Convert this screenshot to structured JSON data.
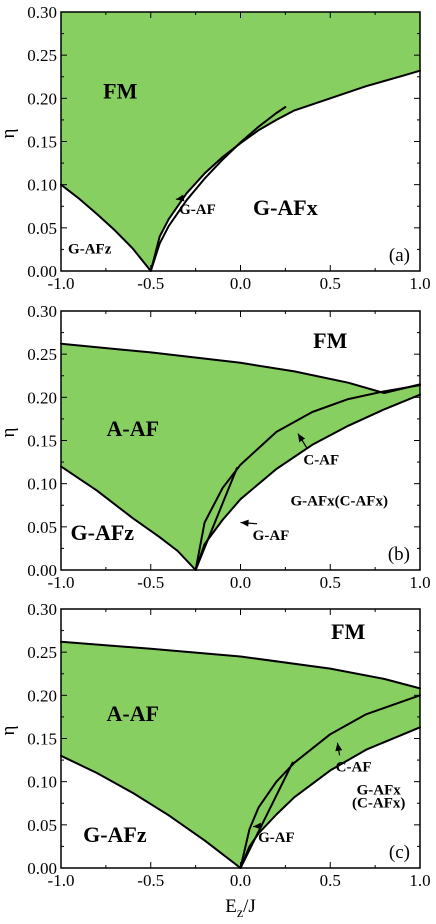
{
  "chart_data": [
    {
      "type": "area",
      "panel": "(a)",
      "ylabel": "η",
      "xlim": [
        -1.0,
        1.0
      ],
      "ylim": [
        0.0,
        0.3
      ],
      "x_ticks": [
        "-1.0",
        "-0.5",
        "0.0",
        "0.5",
        "1.0"
      ],
      "y_ticks": [
        "0.00",
        "0.05",
        "0.10",
        "0.15",
        "0.20",
        "0.25",
        "0.30"
      ],
      "critical_point": [
        -0.5,
        0.0
      ],
      "boundaries": [
        {
          "name": "G-AFz/FM",
          "x": [
            -1.0,
            -0.9,
            -0.8,
            -0.7,
            -0.6,
            -0.5
          ],
          "y": [
            0.1,
            0.084,
            0.066,
            0.047,
            0.026,
            0.0
          ]
        },
        {
          "name": "G-AFx upper",
          "x": [
            -0.5,
            -0.45,
            -0.4,
            -0.3,
            -0.2,
            -0.1,
            0.0,
            0.1,
            0.2,
            0.3,
            0.5,
            0.7,
            0.9,
            1.0
          ],
          "y": [
            0.0,
            0.04,
            0.06,
            0.09,
            0.113,
            0.132,
            0.148,
            0.163,
            0.175,
            0.186,
            0.2,
            0.214,
            0.226,
            0.232
          ]
        },
        {
          "name": "G-AF upper",
          "x": [
            -0.5,
            -0.45,
            -0.4,
            -0.3,
            -0.2,
            -0.1,
            0.0,
            0.1,
            0.2,
            0.25
          ],
          "y": [
            0.0,
            0.032,
            0.052,
            0.082,
            0.107,
            0.129,
            0.149,
            0.167,
            0.183,
            0.19
          ]
        }
      ],
      "regions": [
        {
          "label": "FM",
          "fill": "#88cf62",
          "x": -0.67,
          "y": 0.2
        },
        {
          "label": "G-AFz",
          "fill": "#ffffff",
          "x": -0.84,
          "y": 0.02
        },
        {
          "label": "G-AFx",
          "fill": "#ffffff",
          "x": 0.25,
          "y": 0.065
        }
      ],
      "annotations": [
        {
          "text": "G-AF",
          "text_at": [
            -0.24,
            0.066
          ],
          "arrow_to": [
            -0.36,
            0.083
          ]
        }
      ]
    },
    {
      "type": "area",
      "panel": "(b)",
      "ylabel": "η",
      "xlim": [
        -1.0,
        1.0
      ],
      "ylim": [
        0.0,
        0.3
      ],
      "x_ticks": [
        "-1.0",
        "-0.5",
        "0.0",
        "0.5",
        "1.0"
      ],
      "y_ticks": [
        "0.00",
        "0.05",
        "0.10",
        "0.15",
        "0.20",
        "0.25",
        "0.30"
      ],
      "critical_point": [
        -0.25,
        0.0
      ],
      "boundaries": [
        {
          "name": "FM/A-AF",
          "x": [
            -1.0,
            -0.5,
            0.0,
            0.3,
            0.6,
            0.8,
            1.0
          ],
          "y": [
            0.262,
            0.252,
            0.24,
            0.23,
            0.217,
            0.205,
            0.215
          ]
        },
        {
          "name": "G-AFz/A-AF",
          "x": [
            -1.0,
            -0.8,
            -0.6,
            -0.45,
            -0.35,
            -0.25
          ],
          "y": [
            0.12,
            0.092,
            0.06,
            0.038,
            0.022,
            0.0
          ]
        },
        {
          "name": "A-AF/C-AF",
          "x": [
            -0.25,
            -0.2,
            -0.1,
            0.0,
            0.2,
            0.4,
            0.6,
            0.8,
            1.0
          ],
          "y": [
            0.0,
            0.055,
            0.095,
            0.122,
            0.16,
            0.183,
            0.198,
            0.207,
            0.214
          ]
        },
        {
          "name": "C-AF/G-AFx",
          "x": [
            -0.25,
            -0.2,
            -0.1,
            0.0,
            0.2,
            0.4,
            0.6,
            0.8,
            1.0
          ],
          "y": [
            0.0,
            0.03,
            0.058,
            0.082,
            0.117,
            0.145,
            0.167,
            0.186,
            0.203
          ]
        },
        {
          "name": "G-AF",
          "x": [
            -0.25,
            -0.02
          ],
          "y": [
            0.0,
            0.118
          ]
        }
      ],
      "regions": [
        {
          "label": "FM",
          "fill": "#ffffff",
          "x": 0.5,
          "y": 0.257
        },
        {
          "label": "A-AF",
          "fill": "#88cf62",
          "x": -0.6,
          "y": 0.155
        },
        {
          "label": "G-AFz",
          "fill": "#ffffff",
          "x": -0.77,
          "y": 0.035
        },
        {
          "label": "G-AFx(C-AFx)",
          "fill": "#ffffff",
          "x": 0.55,
          "y": 0.075
        }
      ],
      "annotations": [
        {
          "text": "C-AF",
          "text_at": [
            0.45,
            0.122
          ],
          "arrow_to": [
            0.32,
            0.158
          ]
        },
        {
          "text": "G-AF",
          "text_at": [
            0.17,
            0.035
          ],
          "arrow_to": [
            0.0,
            0.055
          ]
        }
      ]
    },
    {
      "type": "area",
      "panel": "(c)",
      "ylabel": "η",
      "xlabel": "E_z/J",
      "xlim": [
        -1.0,
        1.0
      ],
      "ylim": [
        0.0,
        0.3
      ],
      "x_ticks": [
        "-1.0",
        "-0.5",
        "0.0",
        "0.5",
        "1.0"
      ],
      "y_ticks": [
        "0.00",
        "0.05",
        "0.10",
        "0.15",
        "0.20",
        "0.25",
        "0.30"
      ],
      "critical_point": [
        0.0,
        0.0
      ],
      "boundaries": [
        {
          "name": "FM/A-AF",
          "x": [
            -1.0,
            -0.5,
            0.0,
            0.5,
            0.8,
            1.0
          ],
          "y": [
            0.262,
            0.254,
            0.245,
            0.231,
            0.219,
            0.208
          ]
        },
        {
          "name": "G-AFz/A-AF",
          "x": [
            -1.0,
            -0.8,
            -0.6,
            -0.4,
            -0.2,
            0.0
          ],
          "y": [
            0.13,
            0.11,
            0.087,
            0.061,
            0.032,
            0.0
          ]
        },
        {
          "name": "A-AF/C-AF",
          "x": [
            0.0,
            0.05,
            0.1,
            0.2,
            0.3,
            0.5,
            0.7,
            1.0
          ],
          "y": [
            0.0,
            0.045,
            0.07,
            0.1,
            0.122,
            0.155,
            0.178,
            0.2
          ]
        },
        {
          "name": "C-AF/G-AFx",
          "x": [
            0.0,
            0.05,
            0.1,
            0.2,
            0.3,
            0.5,
            0.7,
            1.0
          ],
          "y": [
            0.0,
            0.025,
            0.04,
            0.062,
            0.082,
            0.113,
            0.137,
            0.163
          ]
        },
        {
          "name": "G-AF",
          "x": [
            0.0,
            0.29
          ],
          "y": [
            0.0,
            0.122
          ]
        }
      ],
      "regions": [
        {
          "label": "FM",
          "fill": "#ffffff",
          "x": 0.6,
          "y": 0.265
        },
        {
          "label": "A-AF",
          "fill": "#88cf62",
          "x": -0.6,
          "y": 0.17
        },
        {
          "label": "G-AFz",
          "fill": "#ffffff",
          "x": -0.7,
          "y": 0.03
        },
        {
          "label": "G-AFx",
          "fill": "#ffffff",
          "x": 0.77,
          "y": 0.085
        },
        {
          "label": "(C-AFx)",
          "fill": "#ffffff",
          "x": 0.77,
          "y": 0.07
        }
      ],
      "annotations": [
        {
          "text": "C-AF",
          "text_at": [
            0.63,
            0.112
          ],
          "arrow_to": [
            0.54,
            0.145
          ]
        },
        {
          "text": "G-AF",
          "text_at": [
            0.2,
            0.03
          ],
          "arrow_to": [
            0.07,
            0.048
          ]
        }
      ]
    }
  ]
}
